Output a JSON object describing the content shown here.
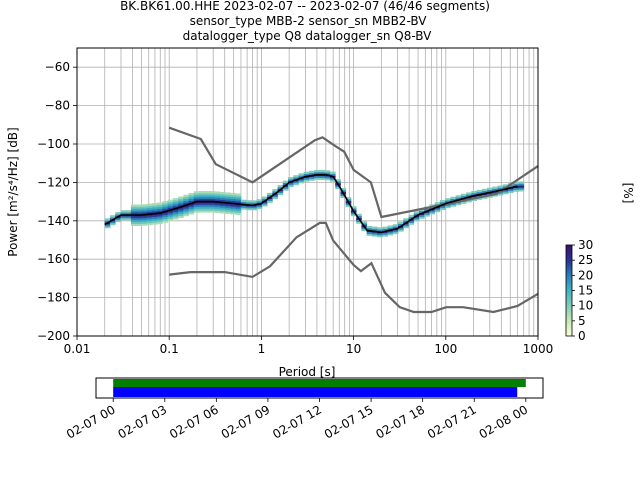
{
  "chart_data": [
    {
      "type": "line",
      "title_lines": [
        "BK.BK61.00.HHE   2023-02-07 -- 2023-02-07  (46/46 segments)",
        "sensor_type MBB-2 sensor_sn MBB2-BV",
        "datalogger_type Q8 datalogger_sn Q8-BV"
      ],
      "xlabel": "Period [s]",
      "ylabel": "Power [m²/s⁴/Hz] [dB]",
      "xscale": "log",
      "xlim": [
        0.01,
        1000
      ],
      "ylim": [
        -200,
        -50
      ],
      "x_ticks": [
        0.01,
        0.1,
        1,
        10,
        100,
        1000
      ],
      "x_tick_labels": [
        "0.01",
        "0.1",
        "1",
        "10",
        "100",
        "1000"
      ],
      "y_ticks": [
        -200,
        -180,
        -160,
        -140,
        -120,
        -100,
        -80,
        -60
      ],
      "y_tick_labels": [
        "−200",
        "−180",
        "−160",
        "−140",
        "−120",
        "−100",
        "−80",
        "−60"
      ],
      "grid": true,
      "series": [
        {
          "role": "noise_model_high",
          "color": "#666666",
          "x": [
            0.1,
            0.22,
            0.32,
            0.8,
            3.8,
            4.6,
            6.3,
            7.9,
            10,
            15.4,
            20,
            354.8,
            1000
          ],
          "y": [
            -91.5,
            -97.4,
            -110.5,
            -120,
            -98,
            -96.5,
            -101,
            -104,
            -113.5,
            -120,
            -138,
            -126,
            -111.5
          ]
        },
        {
          "role": "noise_model_low",
          "color": "#666666",
          "x": [
            0.1,
            0.17,
            0.4,
            0.8,
            1.24,
            2.4,
            4.3,
            5,
            6,
            10,
            12,
            15.6,
            21.9,
            31.6,
            45,
            70,
            101,
            154,
            328,
            600,
            1000
          ],
          "y": [
            -168,
            -166.7,
            -166.7,
            -169.2,
            -163.7,
            -148.6,
            -141.1,
            -141.1,
            -150.2,
            -163,
            -166.2,
            -162.1,
            -177.5,
            -185,
            -187.5,
            -187.5,
            -185,
            -185,
            -187.5,
            -184.4,
            -178
          ]
        },
        {
          "role": "mean",
          "color": "#000000",
          "x": [
            0.02,
            0.03,
            0.05,
            0.08,
            0.13,
            0.2,
            0.3,
            0.5,
            0.8,
            1.0,
            1.5,
            2.0,
            3.0,
            4.0,
            5.0,
            6.0,
            7.0,
            10,
            14,
            20,
            30,
            50,
            100,
            200,
            400,
            600
          ],
          "y": [
            -142,
            -137,
            -137,
            -136,
            -133,
            -130,
            -130,
            -131,
            -132,
            -131,
            -125,
            -120,
            -117,
            -116,
            -116,
            -117,
            -122,
            -135,
            -145,
            -146,
            -144,
            -137,
            -131,
            -127,
            -124,
            -122
          ]
        }
      ],
      "colorbar": {
        "label": "[%]",
        "min": 0,
        "max": 30,
        "ticks": [
          0,
          5,
          10,
          15,
          20,
          25,
          30
        ],
        "tick_labels": [
          "0",
          "5",
          "10",
          "15",
          "20",
          "25",
          "30"
        ],
        "colors": [
          "#ffffd9",
          "#c7e9b4",
          "#7fcdbb",
          "#41b6c4",
          "#2c7fb8",
          "#253494",
          "#3b0f70"
        ]
      }
    },
    {
      "type": "timeline",
      "xlim": [
        "2023-02-06T23:00",
        "2023-02-08T01:00"
      ],
      "tick_labels": [
        "02-07 00",
        "02-07 03",
        "02-07 06",
        "02-07 09",
        "02-07 12",
        "02-07 15",
        "02-07 18",
        "02-07 21",
        "02-08 00"
      ],
      "tick_hours": [
        0,
        3,
        6,
        9,
        12,
        15,
        18,
        21,
        24
      ],
      "bars": [
        {
          "role": "data_coverage",
          "color": "#008000",
          "start_hour": 0.0,
          "end_hour": 24.0
        },
        {
          "role": "psd_segments",
          "color": "#0000ff",
          "start_hour": 0.0,
          "end_hour": 23.5
        }
      ]
    }
  ]
}
